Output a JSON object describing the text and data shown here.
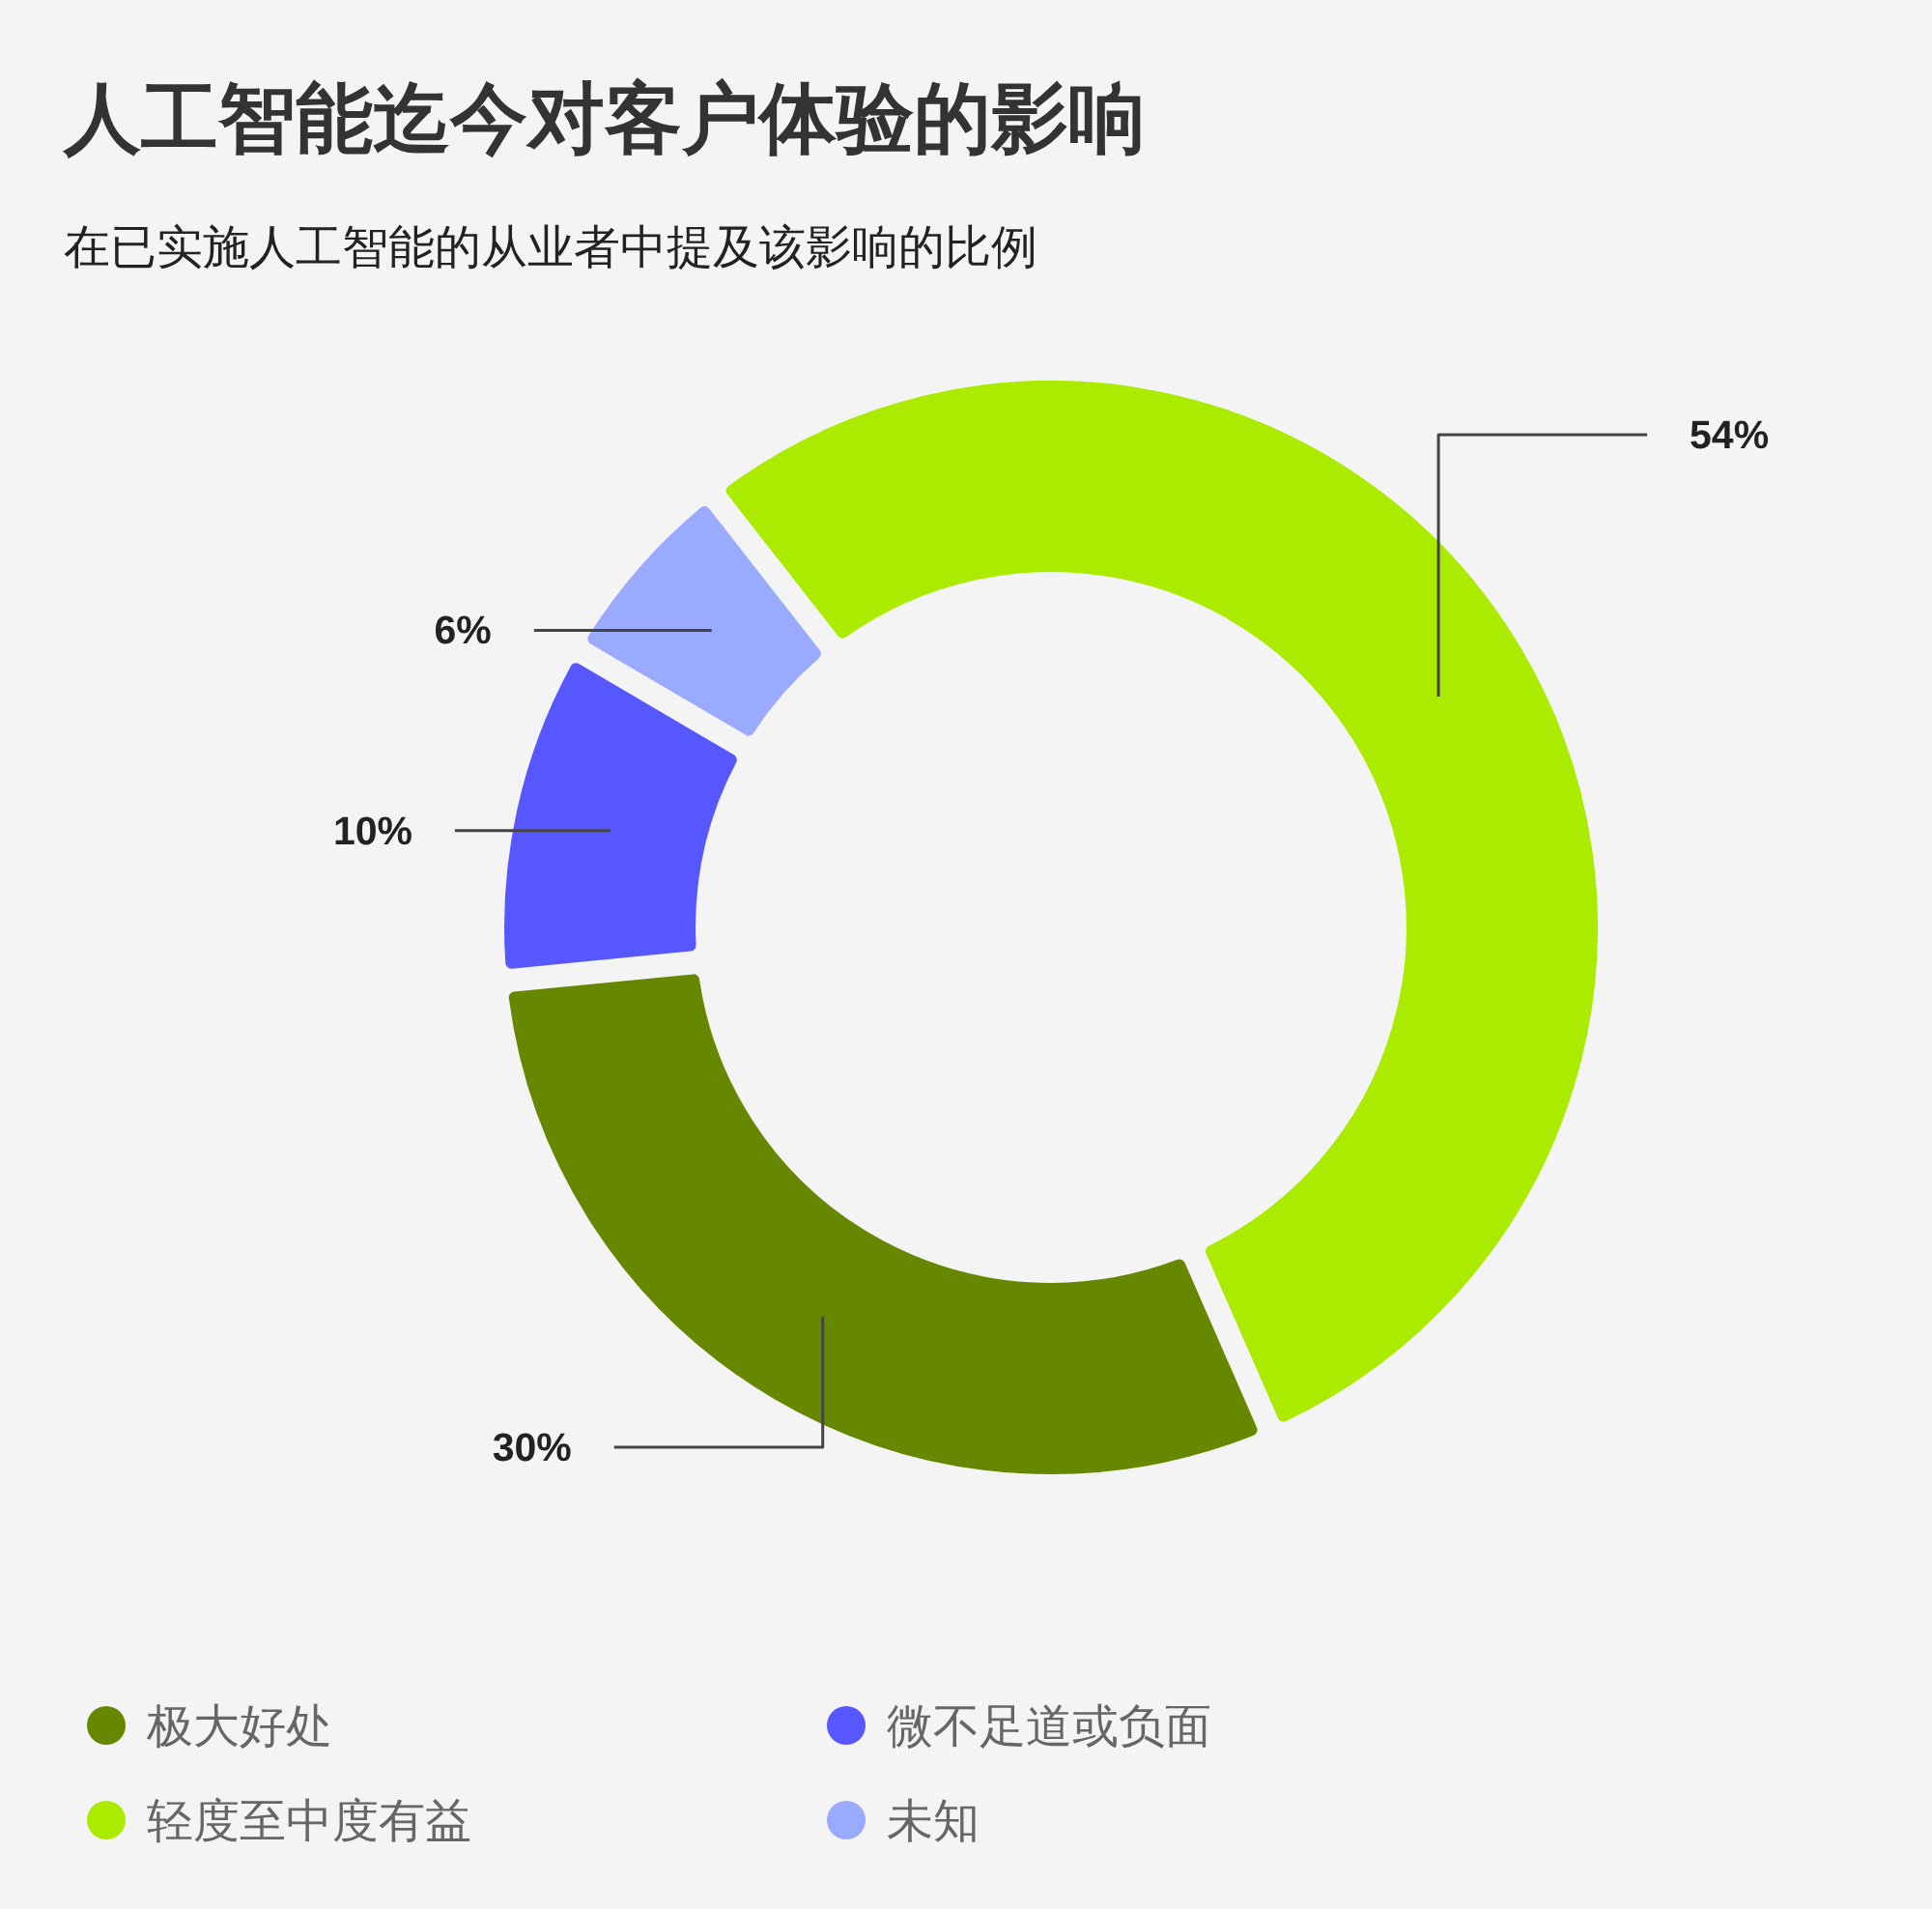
{
  "chart_data": {
    "type": "donut",
    "title": "人工智能迄今对客户体验的影响",
    "subtitle": "在已实施人工智能的从业者中提及该影响的比例",
    "categories": [
      "极大好处",
      "轻度至中度有益",
      "微不足道或负面",
      "未知"
    ],
    "values": [
      30,
      54,
      10,
      6
    ],
    "colors": [
      "#668800",
      "#aaeb00",
      "#5757ff",
      "#9aabff"
    ],
    "value_labels": [
      "30%",
      "54%",
      "10%",
      "6%"
    ],
    "legend": "bottom"
  }
}
